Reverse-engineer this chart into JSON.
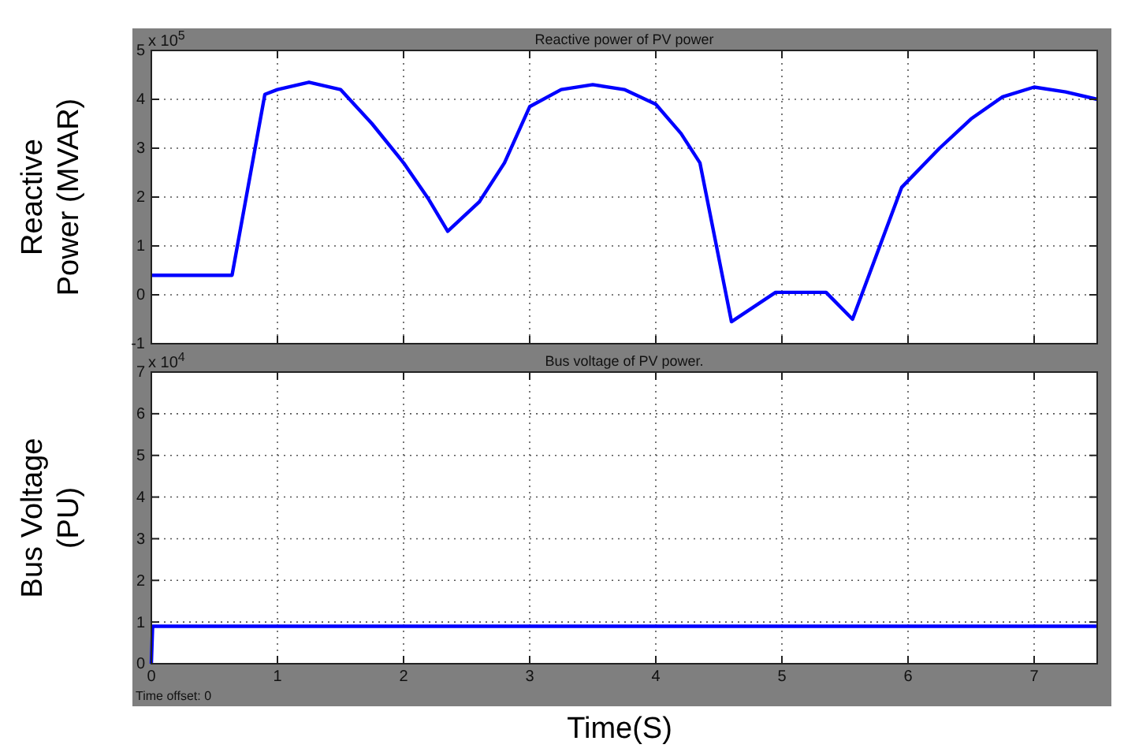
{
  "chart_data": [
    {
      "type": "line",
      "title": "Reactive power of PV power",
      "ylabel": "Reactive Power (MVAR)",
      "annotations": [
        "x 10$^{5}$"
      ],
      "series": [
        {
          "color": "#0000ff",
          "x": [
            0,
            0.64,
            0.9,
            1.0,
            1.25,
            1.5,
            1.75,
            2.0,
            2.2,
            2.35,
            2.6,
            2.8,
            3.0,
            3.25,
            3.5,
            3.75,
            4.0,
            4.2,
            4.35,
            4.6,
            4.95,
            5.35,
            5.56,
            5.95,
            6.25,
            6.5,
            6.75,
            7.0,
            7.25,
            7.5
          ],
          "values": [
            0.4,
            0.4,
            4.1,
            4.2,
            4.35,
            4.2,
            3.5,
            2.7,
            1.95,
            1.3,
            1.9,
            2.7,
            3.85,
            4.2,
            4.3,
            4.2,
            3.9,
            3.3,
            2.7,
            -0.55,
            0.05,
            0.05,
            -0.5,
            2.2,
            3.0,
            3.6,
            4.05,
            4.25,
            4.15,
            4.0
          ]
        }
      ],
      "xlim": [
        0,
        7.5
      ],
      "xticks": [
        0,
        1,
        2,
        3,
        4,
        5,
        6,
        7
      ],
      "ylim": [
        -1,
        5
      ],
      "yticks": [
        -1,
        0,
        1,
        2,
        3,
        4,
        5
      ],
      "grid": true,
      "tick_labels": "y"
    },
    {
      "type": "line",
      "title": "Bus voltage of PV power.",
      "ylabel": "Bus Voltage (PU)",
      "xlabel": "Time(S)",
      "annotations": [
        "x 10$^{4}$",
        "Time offset:  0"
      ],
      "series": [
        {
          "color": "#0000ff",
          "x": [
            0,
            0.01,
            7.5
          ],
          "values": [
            0,
            0.9,
            0.9
          ]
        }
      ],
      "xlim": [
        0,
        7.5
      ],
      "xticks": [
        0,
        1,
        2,
        3,
        4,
        5,
        6,
        7
      ],
      "ylim": [
        0,
        7
      ],
      "yticks": [
        0,
        1,
        2,
        3,
        4,
        5,
        6,
        7
      ],
      "grid": true
    }
  ]
}
